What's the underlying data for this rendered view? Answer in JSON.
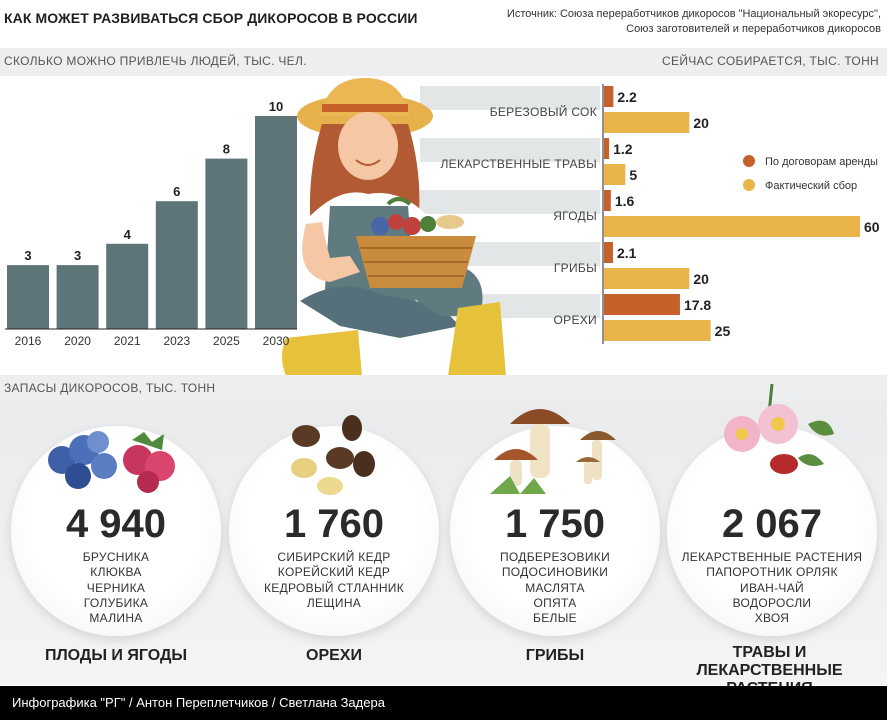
{
  "header": {
    "title": "КАК МОЖЕТ РАЗВИВАТЬСЯ СБОР ДИКОРОСОВ В РОССИИ",
    "source_line1": "Источник: Союза переработчиков дикоросов \"Национальный экоресурс\",",
    "source_line2": "Союз заготовителей и переработчиков дикоросов"
  },
  "people_section": {
    "title": "СКОЛЬКО МОЖНО ПРИВЛЕЧЬ ЛЮДЕЙ, ТЫС. ЧЕЛ."
  },
  "harvest_section": {
    "title": "СЕЙЧАС СОБИРАЕТСЯ, ТЫС. ТОНН"
  },
  "stocks_section": {
    "title": "ЗАПАСЫ ДИКОРОСОВ, ТЫС. ТОНН"
  },
  "chart_data": [
    {
      "type": "bar",
      "title": "СКОЛЬКО МОЖНО ПРИВЛЕЧЬ ЛЮДЕЙ, ТЫС. ЧЕЛ.",
      "categories": [
        "2016",
        "2020",
        "2021",
        "2023",
        "2025",
        "2030"
      ],
      "values": [
        3,
        3,
        4,
        6,
        8,
        10
      ],
      "ylim": [
        0,
        10
      ],
      "color": "#5d7579"
    },
    {
      "type": "bar",
      "orientation": "horizontal",
      "title": "СЕЙЧАС СОБИРАЕТСЯ, ТЫС. ТОНН",
      "categories": [
        "БЕРЕЗОВЫЙ СОК",
        "ЛЕКАРСТВЕННЫЕ ТРАВЫ",
        "ЯГОДЫ",
        "ГРИБЫ",
        "ОРЕХИ"
      ],
      "series": [
        {
          "name": "По договорам аренды",
          "color": "#c8602a",
          "values": [
            2.2,
            1.2,
            1.6,
            2.1,
            17.8
          ]
        },
        {
          "name": "Фактический сбор",
          "color": "#e9b54a",
          "values": [
            20,
            5,
            60,
            20,
            25
          ]
        }
      ],
      "xlim": [
        0,
        60
      ],
      "legend": "right"
    }
  ],
  "stocks": [
    {
      "value": "4 940",
      "items": [
        "БРУСНИКА",
        "КЛЮКВА",
        "ЧЕРНИКА",
        "ГОЛУБИКА",
        "МАЛИНА"
      ],
      "category": "ПЛОДЫ И ЯГОДЫ"
    },
    {
      "value": "1 760",
      "items": [
        "СИБИРСКИЙ КЕДР",
        "КОРЕЙСКИЙ КЕДР",
        "КЕДРОВЫЙ СТЛАННИК",
        "ЛЕЩИНА"
      ],
      "category": "ОРЕХИ"
    },
    {
      "value": "1 750",
      "items": [
        "ПОДБЕРЕЗОВИКИ",
        "ПОДОСИНОВИКИ",
        "МАСЛЯТА",
        "ОПЯТА",
        "БЕЛЫЕ"
      ],
      "category": "ГРИБЫ"
    },
    {
      "value": "2 067",
      "items": [
        "ЛЕКАРСТВЕННЫЕ РАСТЕНИЯ",
        "ПАПОРОТНИК ОРЛЯК",
        "ИВАН-ЧАЙ",
        "ВОДОРОСЛИ",
        "ХВОЯ"
      ],
      "category_line1": "ТРАВЫ И",
      "category_line2": "ЛЕКАРСТВЕННЫЕ РАСТЕНИЯ"
    }
  ],
  "icons": [
    "berries-icon",
    "nuts-icon",
    "mushrooms-icon",
    "flowers-icon",
    "woman-with-basket-illustration"
  ],
  "footer": {
    "credit": "Инфографика \"РГ\" / Антон Переплетчиков / Светлана Задера"
  }
}
